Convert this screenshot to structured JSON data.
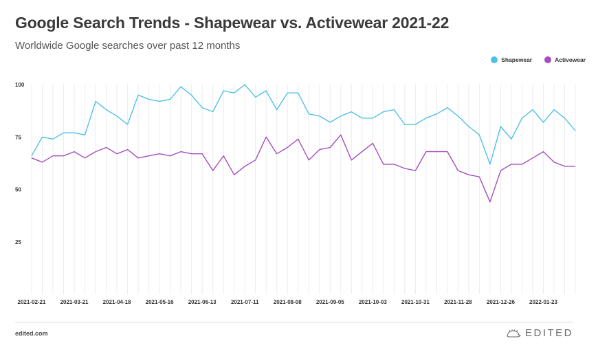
{
  "title": "Google Search Trends - Shapewear vs. Activewear 2021-22",
  "subtitle": "Worldwide Google searches over past 12 months",
  "footer": {
    "site": "edited.com",
    "brand": "EDITED"
  },
  "colors": {
    "shapewear": "#4ec1e6",
    "activewear": "#a54dbc",
    "grid": "#ececec"
  },
  "chart_data": {
    "type": "line",
    "title": "Google Search Trends - Shapewear vs. Activewear 2021-22",
    "subtitle": "Worldwide Google searches over past 12 months",
    "xlabel": "",
    "ylabel": "",
    "ylim": [
      0,
      100
    ],
    "yticks": [
      25,
      50,
      75,
      100
    ],
    "grid": true,
    "legend_position": "top-right",
    "x": [
      "2021-02-21",
      "2021-02-28",
      "2021-03-07",
      "2021-03-14",
      "2021-03-21",
      "2021-03-28",
      "2021-04-04",
      "2021-04-11",
      "2021-04-18",
      "2021-04-25",
      "2021-05-02",
      "2021-05-09",
      "2021-05-16",
      "2021-05-23",
      "2021-05-30",
      "2021-06-06",
      "2021-06-13",
      "2021-06-20",
      "2021-06-27",
      "2021-07-04",
      "2021-07-11",
      "2021-07-18",
      "2021-07-25",
      "2021-08-01",
      "2021-08-08",
      "2021-08-15",
      "2021-08-22",
      "2021-08-29",
      "2021-09-05",
      "2021-09-12",
      "2021-09-19",
      "2021-09-26",
      "2021-10-03",
      "2021-10-10",
      "2021-10-17",
      "2021-10-24",
      "2021-10-31",
      "2021-11-07",
      "2021-11-14",
      "2021-11-21",
      "2021-11-28",
      "2021-12-05",
      "2021-12-12",
      "2021-12-19",
      "2021-12-26",
      "2022-01-02",
      "2022-01-09",
      "2022-01-16",
      "2022-01-23",
      "2022-01-30",
      "2022-02-06",
      "2022-02-13"
    ],
    "xtick_labels": [
      "2021-02-21",
      "2021-03-21",
      "2021-04-18",
      "2021-05-16",
      "2021-06-13",
      "2021-07-11",
      "2021-08-08",
      "2021-09-05",
      "2021-10-03",
      "2021-10-31",
      "2021-11-28",
      "2021-12-26",
      "2022-01-23"
    ],
    "series": [
      {
        "name": "Shapewear",
        "values": [
          66,
          75,
          74,
          77,
          77,
          76,
          92,
          88,
          85,
          81,
          95,
          93,
          92,
          93,
          99,
          95,
          89,
          87,
          97,
          96,
          100,
          94,
          97,
          88,
          96,
          96,
          86,
          85,
          82,
          85,
          87,
          84,
          84,
          87,
          88,
          81,
          81,
          84,
          86,
          89,
          85,
          80,
          76,
          62,
          80,
          74,
          84,
          88,
          82,
          88,
          84,
          78
        ]
      },
      {
        "name": "Activewear",
        "values": [
          65,
          63,
          66,
          66,
          68,
          65,
          68,
          70,
          67,
          69,
          65,
          66,
          67,
          66,
          68,
          67,
          67,
          59,
          66,
          57,
          61,
          64,
          75,
          67,
          70,
          74,
          64,
          69,
          70,
          76,
          64,
          68,
          72,
          62,
          62,
          60,
          59,
          68,
          68,
          68,
          59,
          57,
          56,
          44,
          59,
          62,
          62,
          65,
          68,
          63,
          61,
          61
        ]
      }
    ]
  }
}
